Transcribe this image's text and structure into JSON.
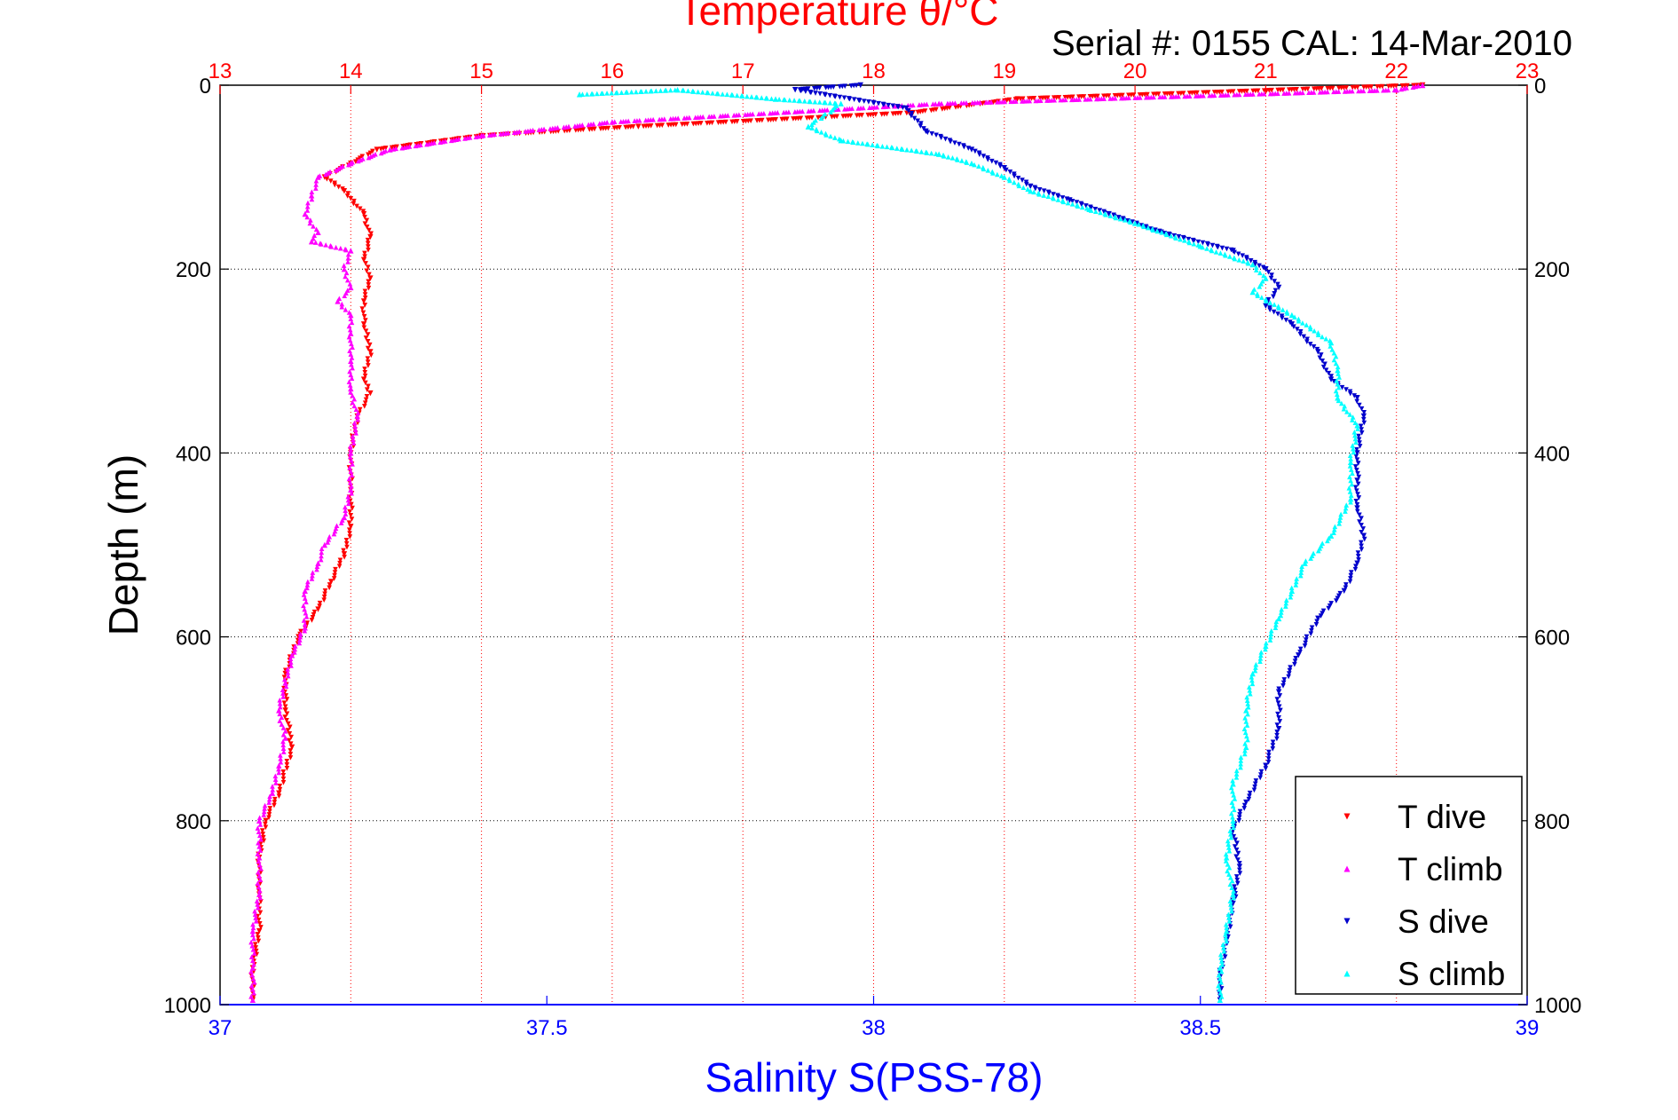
{
  "chart_data": {
    "type": "scatter",
    "title": "Temperature θ/°C",
    "subtitle": "Serial #: 0155  CAL: 14-Mar-2010",
    "ylabel": "Depth (m)",
    "xlabel_bottom": "Salinity S(PSS-78)",
    "xlabel_top": "Temperature θ/°C",
    "ylim": [
      0,
      1000
    ],
    "y_reversed": true,
    "xlim_bottom": [
      37,
      39
    ],
    "xlim_top": [
      13,
      23
    ],
    "yticks": [
      0,
      200,
      400,
      600,
      800,
      1000
    ],
    "xticks_bottom": [
      37,
      37.5,
      38,
      38.5,
      39
    ],
    "xticks_top": [
      13,
      14,
      15,
      16,
      17,
      18,
      19,
      20,
      21,
      22,
      23
    ],
    "grid": true,
    "legend_position": "bottom-right",
    "colors": {
      "t_dive": "#ff0000",
      "t_climb": "#ff00ff",
      "s_dive": "#0000cc",
      "s_climb": "#00ffff",
      "axis_bottom": "#0000ff",
      "axis_top": "#ff0000"
    },
    "series": [
      {
        "name": "T dive",
        "axis": "top",
        "color": "#ff0000",
        "marker": "triangle-down",
        "points": [
          [
            22.2,
            0
          ],
          [
            19.1,
            15
          ],
          [
            18.3,
            30
          ],
          [
            16.2,
            45
          ],
          [
            15.0,
            55
          ],
          [
            14.2,
            70
          ],
          [
            14.0,
            85
          ],
          [
            13.8,
            100
          ],
          [
            13.95,
            115
          ],
          [
            14.1,
            140
          ],
          [
            14.15,
            165
          ],
          [
            14.1,
            190
          ],
          [
            14.15,
            210
          ],
          [
            14.1,
            235
          ],
          [
            14.1,
            260
          ],
          [
            14.15,
            290
          ],
          [
            14.1,
            320
          ],
          [
            14.15,
            335
          ],
          [
            14.05,
            360
          ],
          [
            14.0,
            400
          ],
          [
            14.0,
            440
          ],
          [
            14.0,
            480
          ],
          [
            13.95,
            510
          ],
          [
            13.85,
            540
          ],
          [
            13.75,
            570
          ],
          [
            13.6,
            600
          ],
          [
            13.5,
            640
          ],
          [
            13.5,
            680
          ],
          [
            13.55,
            720
          ],
          [
            13.45,
            770
          ],
          [
            13.35,
            800
          ],
          [
            13.3,
            840
          ],
          [
            13.3,
            880
          ],
          [
            13.3,
            920
          ],
          [
            13.25,
            960
          ],
          [
            13.25,
            995
          ]
        ]
      },
      {
        "name": "T climb",
        "axis": "top",
        "color": "#ff00ff",
        "marker": "triangle-up",
        "points": [
          [
            22.2,
            0
          ],
          [
            22.0,
            5
          ],
          [
            18.5,
            20
          ],
          [
            16.0,
            40
          ],
          [
            15.0,
            55
          ],
          [
            14.3,
            70
          ],
          [
            14.0,
            85
          ],
          [
            13.75,
            100
          ],
          [
            13.7,
            120
          ],
          [
            13.65,
            140
          ],
          [
            13.75,
            160
          ],
          [
            13.7,
            170
          ],
          [
            14.0,
            180
          ],
          [
            13.95,
            200
          ],
          [
            14.0,
            220
          ],
          [
            13.9,
            235
          ],
          [
            14.0,
            250
          ],
          [
            14.0,
            270
          ],
          [
            14.0,
            300
          ],
          [
            14.0,
            330
          ],
          [
            14.05,
            360
          ],
          [
            14.0,
            400
          ],
          [
            14.0,
            440
          ],
          [
            13.95,
            470
          ],
          [
            13.8,
            500
          ],
          [
            13.75,
            520
          ],
          [
            13.65,
            550
          ],
          [
            13.65,
            590
          ],
          [
            13.55,
            620
          ],
          [
            13.5,
            650
          ],
          [
            13.45,
            680
          ],
          [
            13.5,
            710
          ],
          [
            13.45,
            740
          ],
          [
            13.4,
            770
          ],
          [
            13.3,
            800
          ],
          [
            13.3,
            840
          ],
          [
            13.3,
            880
          ],
          [
            13.25,
            920
          ],
          [
            13.25,
            960
          ],
          [
            13.25,
            995
          ]
        ]
      },
      {
        "name": "S dive",
        "axis": "bottom",
        "color": "#0000cc",
        "marker": "triangle-down",
        "points": [
          [
            37.98,
            0
          ],
          [
            37.88,
            5
          ],
          [
            38.05,
            25
          ],
          [
            38.08,
            50
          ],
          [
            38.15,
            70
          ],
          [
            38.2,
            90
          ],
          [
            38.24,
            110
          ],
          [
            38.3,
            125
          ],
          [
            38.36,
            140
          ],
          [
            38.44,
            160
          ],
          [
            38.55,
            180
          ],
          [
            38.6,
            200
          ],
          [
            38.62,
            220
          ],
          [
            38.6,
            240
          ],
          [
            38.64,
            260
          ],
          [
            38.68,
            290
          ],
          [
            38.7,
            320
          ],
          [
            38.74,
            340
          ],
          [
            38.75,
            360
          ],
          [
            38.74,
            400
          ],
          [
            38.74,
            430
          ],
          [
            38.74,
            460
          ],
          [
            38.75,
            490
          ],
          [
            38.74,
            520
          ],
          [
            38.72,
            550
          ],
          [
            38.68,
            580
          ],
          [
            38.65,
            620
          ],
          [
            38.62,
            660
          ],
          [
            38.62,
            700
          ],
          [
            38.6,
            740
          ],
          [
            38.57,
            780
          ],
          [
            38.55,
            810
          ],
          [
            38.56,
            850
          ],
          [
            38.55,
            890
          ],
          [
            38.54,
            930
          ],
          [
            38.53,
            970
          ],
          [
            38.53,
            995
          ]
        ]
      },
      {
        "name": "S climb",
        "axis": "bottom",
        "color": "#00ffff",
        "marker": "triangle-up",
        "points": [
          [
            37.55,
            10
          ],
          [
            37.7,
            5
          ],
          [
            37.85,
            15
          ],
          [
            37.95,
            20
          ],
          [
            37.9,
            45
          ],
          [
            37.95,
            60
          ],
          [
            38.1,
            75
          ],
          [
            38.15,
            85
          ],
          [
            38.2,
            100
          ],
          [
            38.24,
            115
          ],
          [
            38.33,
            135
          ],
          [
            38.4,
            150
          ],
          [
            38.5,
            175
          ],
          [
            38.58,
            195
          ],
          [
            38.6,
            210
          ],
          [
            38.58,
            225
          ],
          [
            38.64,
            250
          ],
          [
            38.7,
            280
          ],
          [
            38.71,
            310
          ],
          [
            38.71,
            340
          ],
          [
            38.74,
            370
          ],
          [
            38.73,
            410
          ],
          [
            38.73,
            450
          ],
          [
            38.7,
            490
          ],
          [
            38.66,
            520
          ],
          [
            38.64,
            550
          ],
          [
            38.62,
            580
          ],
          [
            38.6,
            610
          ],
          [
            38.58,
            640
          ],
          [
            38.57,
            680
          ],
          [
            38.57,
            720
          ],
          [
            38.55,
            760
          ],
          [
            38.55,
            800
          ],
          [
            38.54,
            840
          ],
          [
            38.55,
            880
          ],
          [
            38.54,
            920
          ],
          [
            38.53,
            960
          ],
          [
            38.53,
            995
          ]
        ]
      }
    ]
  }
}
